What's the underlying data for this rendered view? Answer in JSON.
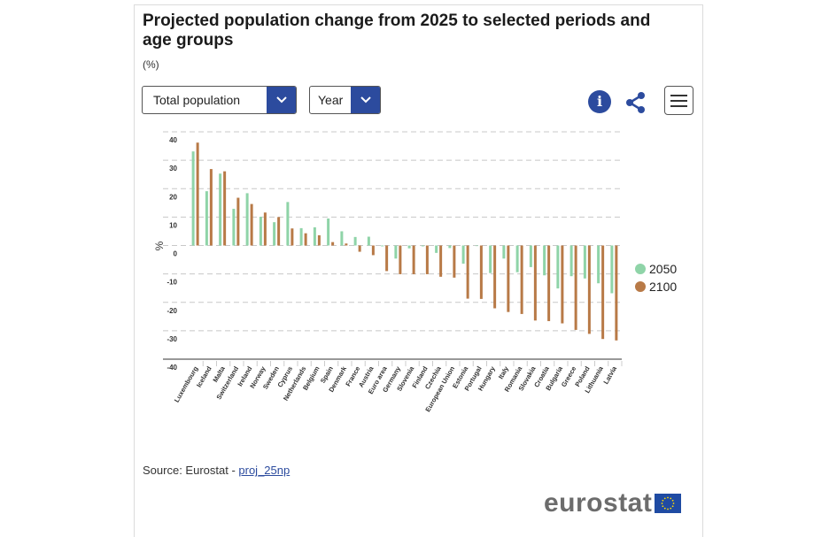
{
  "header": {
    "title": "Projected population change from 2025 to selected periods and age groups",
    "unit": "(%)"
  },
  "controls": {
    "population_select": "Total population",
    "period_select": "Year",
    "info_icon": "info-icon",
    "share_icon": "share-icon",
    "menu_icon": "hamburger-menu-icon"
  },
  "footer": {
    "source_prefix": "Source: Eurostat - ",
    "source_link": "proj_25np",
    "logo_text": "eurostat"
  },
  "colors": {
    "series_2050": "#8fd4a8",
    "series_2100": "#b87a47",
    "accent": "#2c4b9e"
  },
  "chart_data": {
    "type": "bar",
    "title": "Projected population change from 2025 to selected periods and age groups",
    "ylabel": "%",
    "xlabel": "",
    "ylim": [
      -40,
      40
    ],
    "yticks": [
      40,
      30,
      20,
      10,
      0,
      -10,
      -20,
      -30,
      -40
    ],
    "grid": true,
    "legend_position": "right",
    "categories": [
      "Luxembourg",
      "Iceland",
      "Malta",
      "Switzerland",
      "Ireland",
      "Norway",
      "Sweden",
      "Cyprus",
      "Netherlands",
      "Belgium",
      "Spain",
      "Denmark",
      "France",
      "Austria",
      "Euro area",
      "Germany",
      "Slovenia",
      "Finland",
      "Czechia",
      "European Union",
      "Estonia",
      "Portugal",
      "Hungary",
      "Italy",
      "Romania",
      "Slovakia",
      "Croatia",
      "Bulgaria",
      "Greece",
      "Poland",
      "Lithuania",
      "Latvia"
    ],
    "series": [
      {
        "name": "2050",
        "color": "#8fd4a8",
        "values": [
          33.1,
          19.1,
          25.3,
          12.9,
          18.4,
          10.1,
          8.2,
          15.3,
          6.1,
          6.4,
          9.5,
          5.0,
          3.0,
          3.1,
          -0.3,
          -4.6,
          -1.0,
          -0.3,
          -2.6,
          -0.9,
          -6.4,
          -0.2,
          -9.7,
          -4.6,
          -9.4,
          -7.6,
          -10.5,
          -15.1,
          -10.8,
          -11.6,
          -13.3,
          -16.8
        ]
      },
      {
        "name": "2100",
        "color": "#b87a47",
        "values": [
          36.2,
          26.9,
          26.1,
          16.8,
          14.6,
          11.6,
          10.0,
          6.0,
          4.3,
          3.6,
          1.2,
          0.7,
          -2.2,
          -3.4,
          -9.0,
          -10.1,
          -10.1,
          -10.1,
          -11.0,
          -11.3,
          -18.7,
          -18.8,
          -22.1,
          -23.4,
          -24.1,
          -26.4,
          -26.6,
          -27.4,
          -29.7,
          -31.1,
          -32.9,
          -33.4
        ]
      }
    ]
  }
}
